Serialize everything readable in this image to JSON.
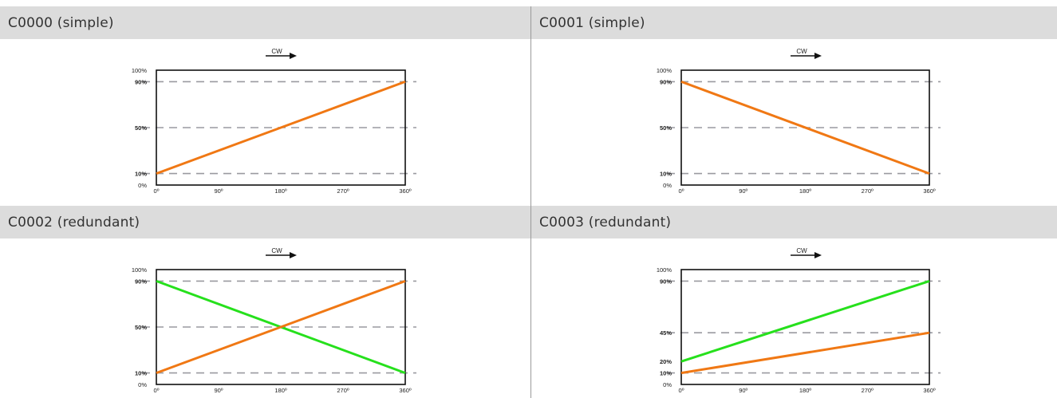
{
  "panels": [
    {
      "title": "C0000 (simple)"
    },
    {
      "title": "C0001 (simple)"
    },
    {
      "title": "C0002 (redundant)"
    },
    {
      "title": "C0003 (redundant)"
    }
  ],
  "colors": {
    "orange": "#f07814",
    "green": "#26e01c",
    "dash": "#9a9aa0",
    "frame": "#111111"
  },
  "chart_data": [
    {
      "type": "line",
      "title": "C0000 (simple)",
      "direction_label": "CW",
      "x_ticks": [
        "0º",
        "90º",
        "180º",
        "270º",
        "360º"
      ],
      "xlim": [
        0,
        360
      ],
      "ylim": [
        0,
        100
      ],
      "y_ticks": [
        {
          "value": 100,
          "label": "100%",
          "bold": false
        },
        {
          "value": 90,
          "label": "90%",
          "bold": true
        },
        {
          "value": 50,
          "label": "50%",
          "bold": true
        },
        {
          "value": 10,
          "label": "10%",
          "bold": true
        },
        {
          "value": 0,
          "label": "0%",
          "bold": false
        }
      ],
      "reference_lines": [
        90,
        50,
        10
      ],
      "series": [
        {
          "color": "#f07814",
          "x": [
            0,
            360
          ],
          "y": [
            10,
            90
          ]
        }
      ]
    },
    {
      "type": "line",
      "title": "C0001 (simple)",
      "direction_label": "CW",
      "x_ticks": [
        "0º",
        "90º",
        "180º",
        "270º",
        "360º"
      ],
      "xlim": [
        0,
        360
      ],
      "ylim": [
        0,
        100
      ],
      "y_ticks": [
        {
          "value": 100,
          "label": "100%",
          "bold": false
        },
        {
          "value": 90,
          "label": "90%",
          "bold": true
        },
        {
          "value": 50,
          "label": "50%",
          "bold": true
        },
        {
          "value": 10,
          "label": "10%",
          "bold": true
        },
        {
          "value": 0,
          "label": "0%",
          "bold": false
        }
      ],
      "reference_lines": [
        90,
        50,
        10
      ],
      "series": [
        {
          "color": "#f07814",
          "x": [
            0,
            360
          ],
          "y": [
            90,
            10
          ]
        }
      ]
    },
    {
      "type": "line",
      "title": "C0002 (redundant)",
      "direction_label": "CW",
      "x_ticks": [
        "0º",
        "90º",
        "180º",
        "270º",
        "360º"
      ],
      "xlim": [
        0,
        360
      ],
      "ylim": [
        0,
        100
      ],
      "y_ticks": [
        {
          "value": 100,
          "label": "100%",
          "bold": false
        },
        {
          "value": 90,
          "label": "90%",
          "bold": true
        },
        {
          "value": 50,
          "label": "50%",
          "bold": true
        },
        {
          "value": 10,
          "label": "10%",
          "bold": true
        },
        {
          "value": 0,
          "label": "0%",
          "bold": false
        }
      ],
      "reference_lines": [
        90,
        50,
        10
      ],
      "series": [
        {
          "color": "#26e01c",
          "x": [
            0,
            360
          ],
          "y": [
            90,
            10
          ]
        },
        {
          "color": "#f07814",
          "x": [
            0,
            360
          ],
          "y": [
            10,
            90
          ]
        }
      ]
    },
    {
      "type": "line",
      "title": "C0003 (redundant)",
      "direction_label": "CW",
      "x_ticks": [
        "0º",
        "90º",
        "180º",
        "270º",
        "360º"
      ],
      "xlim": [
        0,
        360
      ],
      "ylim": [
        0,
        100
      ],
      "y_ticks": [
        {
          "value": 100,
          "label": "100%",
          "bold": false
        },
        {
          "value": 90,
          "label": "90%",
          "bold": true
        },
        {
          "value": 45,
          "label": "45%",
          "bold": true
        },
        {
          "value": 20,
          "label": "20%",
          "bold": true
        },
        {
          "value": 10,
          "label": "10%",
          "bold": true
        },
        {
          "value": 0,
          "label": "0%",
          "bold": false
        }
      ],
      "reference_lines": [
        90,
        45,
        10
      ],
      "series": [
        {
          "color": "#26e01c",
          "x": [
            0,
            360
          ],
          "y": [
            20,
            90
          ]
        },
        {
          "color": "#f07814",
          "x": [
            0,
            360
          ],
          "y": [
            10,
            45
          ]
        }
      ]
    }
  ]
}
